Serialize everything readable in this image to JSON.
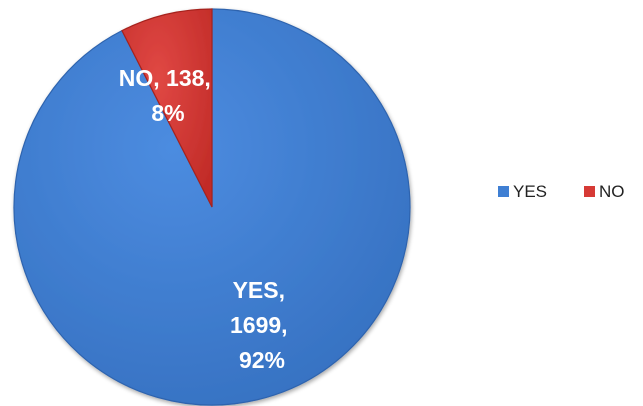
{
  "chart_data": {
    "type": "pie",
    "title": "",
    "legend_position": "right",
    "slices": [
      {
        "label": "YES",
        "value": 1699,
        "percent": "92%",
        "color": "#3F7FD3",
        "edge": "#2E64AE"
      },
      {
        "label": "NO",
        "value": 138,
        "percent": "8%",
        "color": "#D63A35",
        "edge": "#A6221E"
      }
    ],
    "labels": {
      "yes": [
        "YES,",
        "1699,",
        "92%"
      ],
      "no": [
        "NO, 138,",
        "8%"
      ]
    }
  }
}
